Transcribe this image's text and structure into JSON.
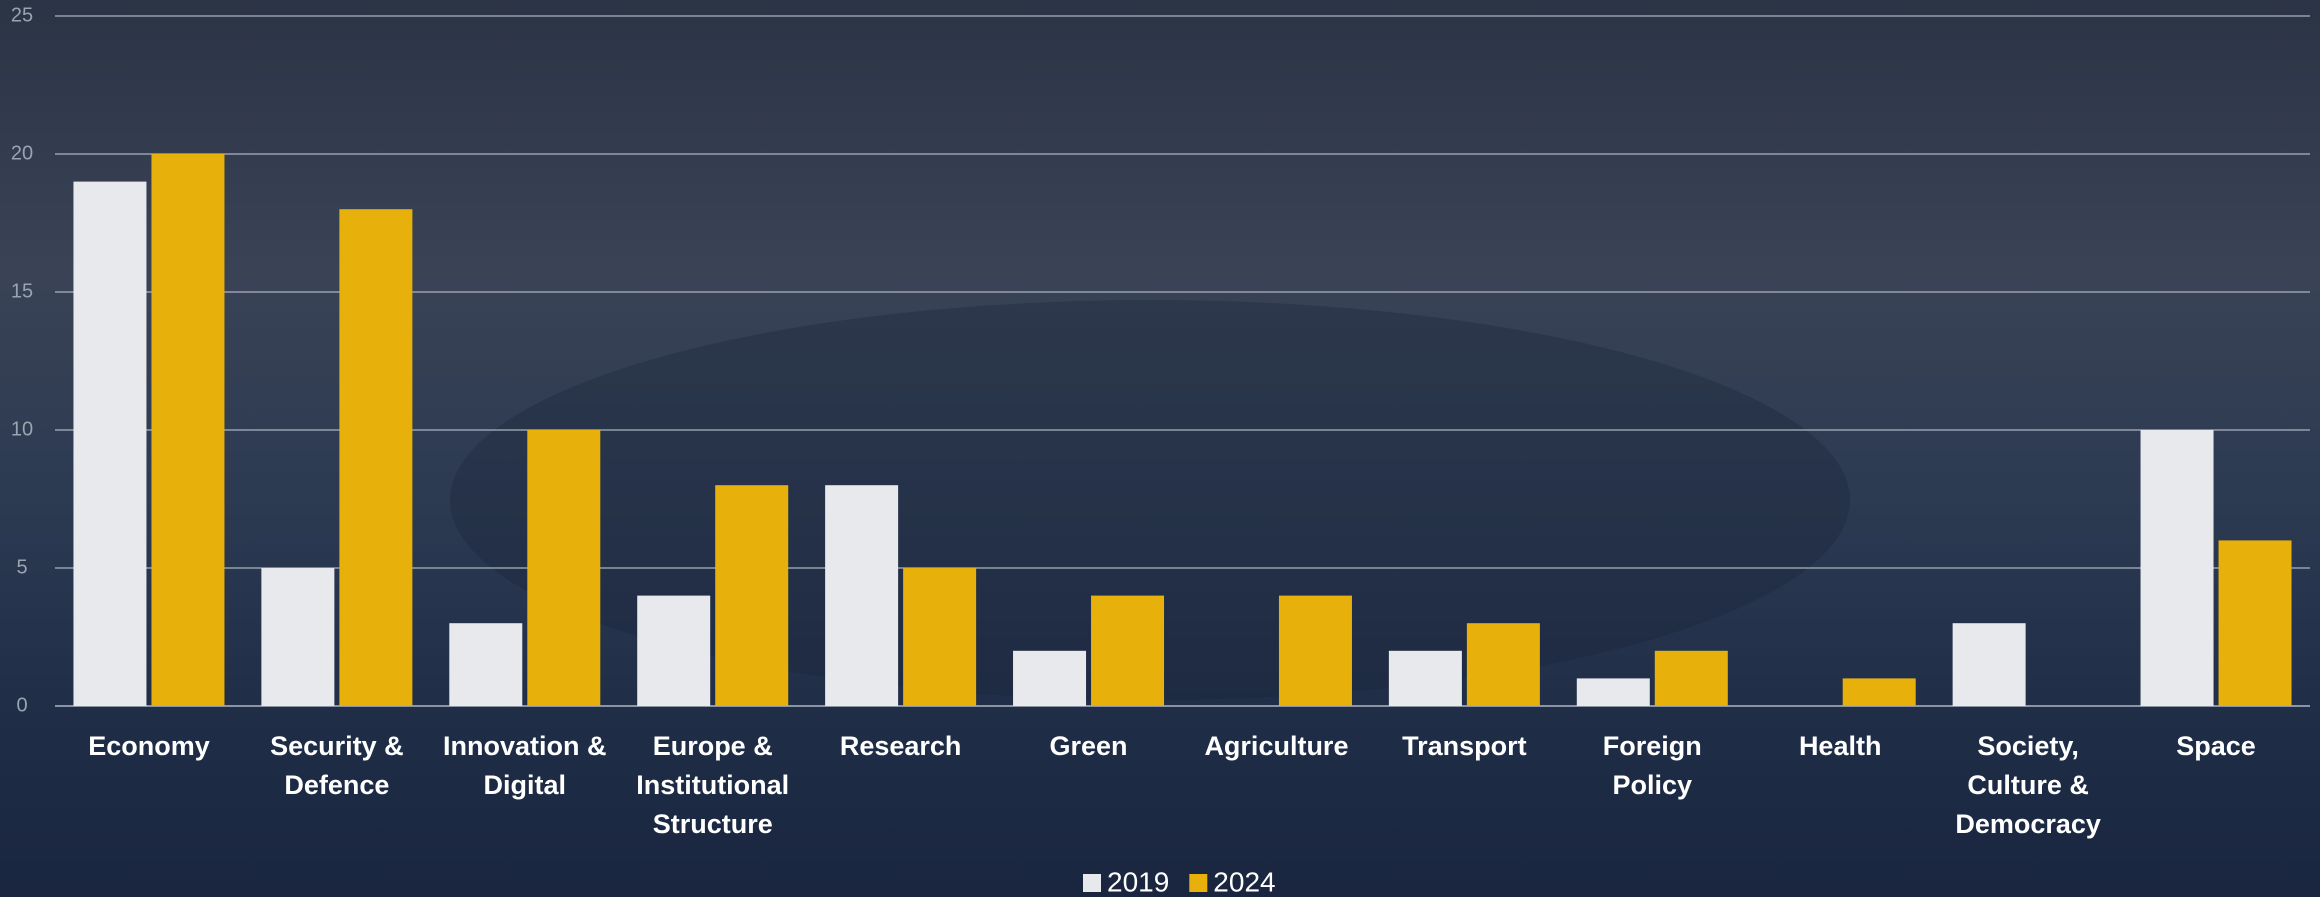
{
  "chart_data": {
    "type": "bar",
    "categories": [
      "Economy",
      "Security & Defence",
      "Innovation & Digital",
      "Europe & Institutional Structure",
      "Research",
      "Green",
      "Agriculture",
      "Transport",
      "Foreign Policy",
      "Health",
      "Society, Culture & Democracy",
      "Space"
    ],
    "series": [
      {
        "name": "2019",
        "color": "#e8e9ec",
        "values": [
          19,
          5,
          3,
          4,
          8,
          2,
          0,
          2,
          1,
          0,
          3,
          10
        ]
      },
      {
        "name": "2024",
        "color": "#e8b00a",
        "values": [
          20,
          18,
          10,
          8,
          5,
          4,
          4,
          3,
          2,
          1,
          0,
          6
        ]
      }
    ],
    "ylim": [
      0,
      25
    ],
    "yticks": [
      0,
      5,
      10,
      15,
      20,
      25
    ],
    "grid": true,
    "legend": "bottom"
  }
}
